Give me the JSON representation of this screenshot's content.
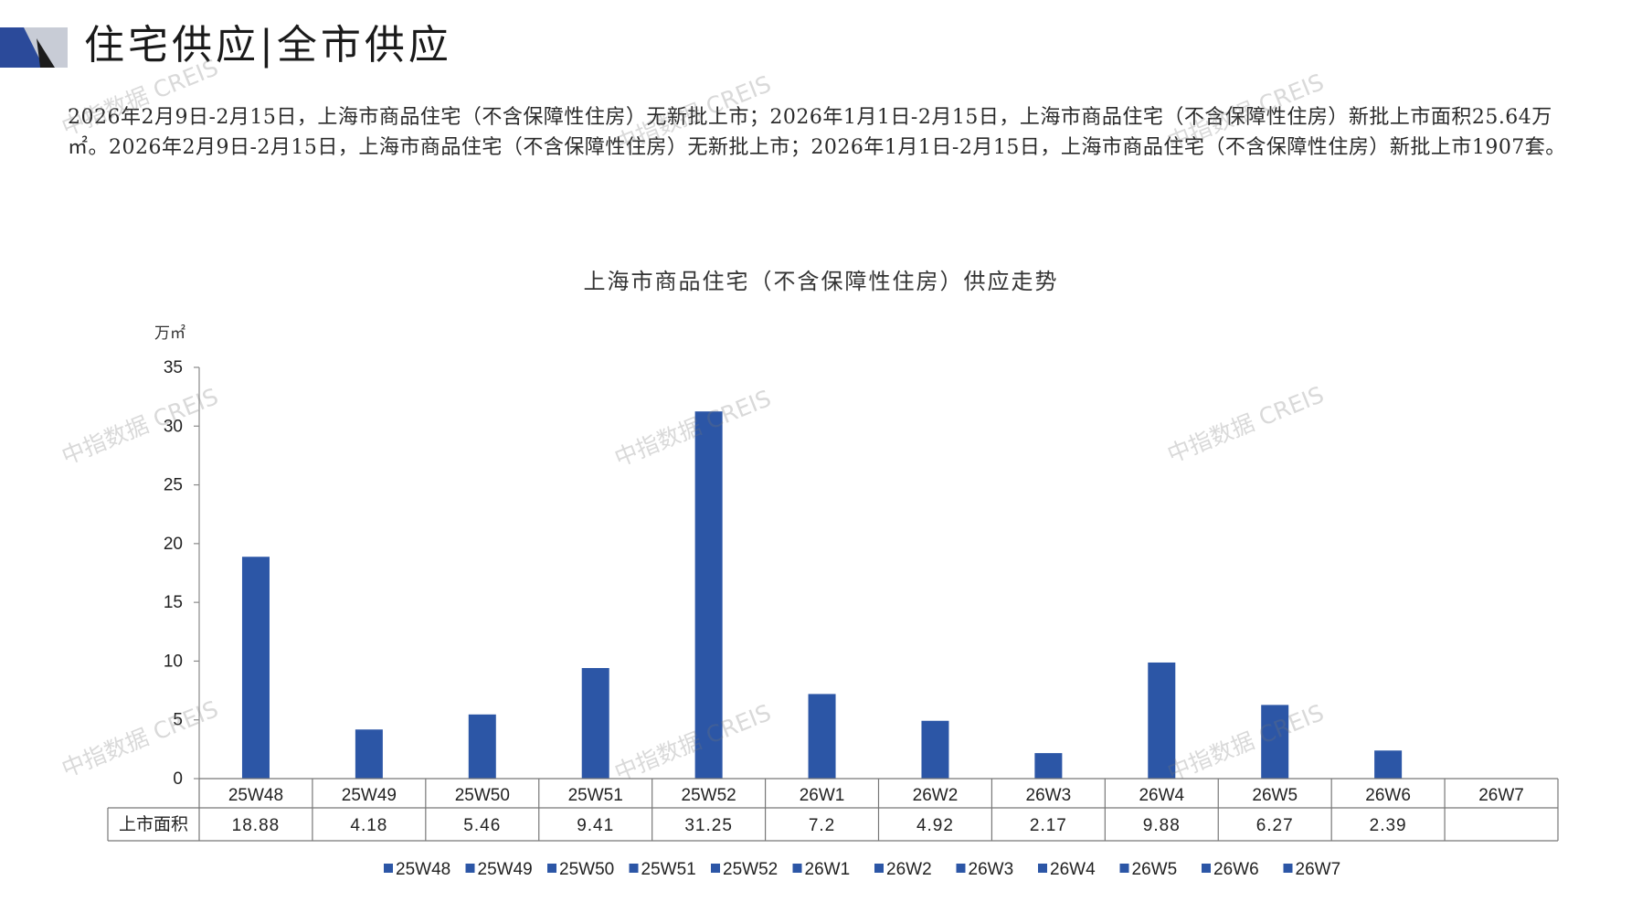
{
  "page": {
    "title": "住宅供应|全市供应",
    "paragraph": "2026年2月9日-2月15日，上海市商品住宅（不含保障性住房）无新批上市；2026年1月1日-2月15日，上海市商品住宅（不含保障性住房）新批上市面积25.64万㎡。2026年2月9日-2月15日，上海市商品住宅（不含保障性住房）无新批上市；2026年1月1日-2月15日，上海市商品住宅（不含保障性住房）新批上市1907套。",
    "watermark": "中指数据 CREIS"
  },
  "colors": {
    "bar": "#2c56a6",
    "accent_dark": "#2b4a9a",
    "accent_light": "#c8ccd6"
  },
  "chart_data": {
    "type": "bar",
    "title": "上海市商品住宅（不含保障性住房）供应走势",
    "ylabel": "万㎡",
    "ylim": [
      0,
      35
    ],
    "yticks": [
      "0",
      "5",
      "10",
      "15",
      "20",
      "25",
      "30",
      "35"
    ],
    "categories": [
      "25W48",
      "25W49",
      "25W50",
      "25W51",
      "25W52",
      "26W1",
      "26W2",
      "26W3",
      "26W4",
      "26W5",
      "26W6",
      "26W7"
    ],
    "series": [
      {
        "name": "上市面积",
        "values": [
          18.88,
          4.18,
          5.46,
          9.41,
          31.25,
          7.2,
          4.92,
          2.17,
          9.88,
          6.27,
          2.39,
          null
        ]
      }
    ],
    "table_row_label": "上市面积",
    "table_values": [
      "18.88",
      "4.18",
      "5.46",
      "9.41",
      "31.25",
      "7.2",
      "4.92",
      "2.17",
      "9.88",
      "6.27",
      "2.39",
      ""
    ],
    "legend": [
      "25W48",
      "25W49",
      "25W50",
      "25W51",
      "25W52",
      "26W1",
      "26W2",
      "26W3",
      "26W4",
      "26W5",
      "26W6",
      "26W7"
    ],
    "legend_position": "bottom",
    "grid": false
  }
}
